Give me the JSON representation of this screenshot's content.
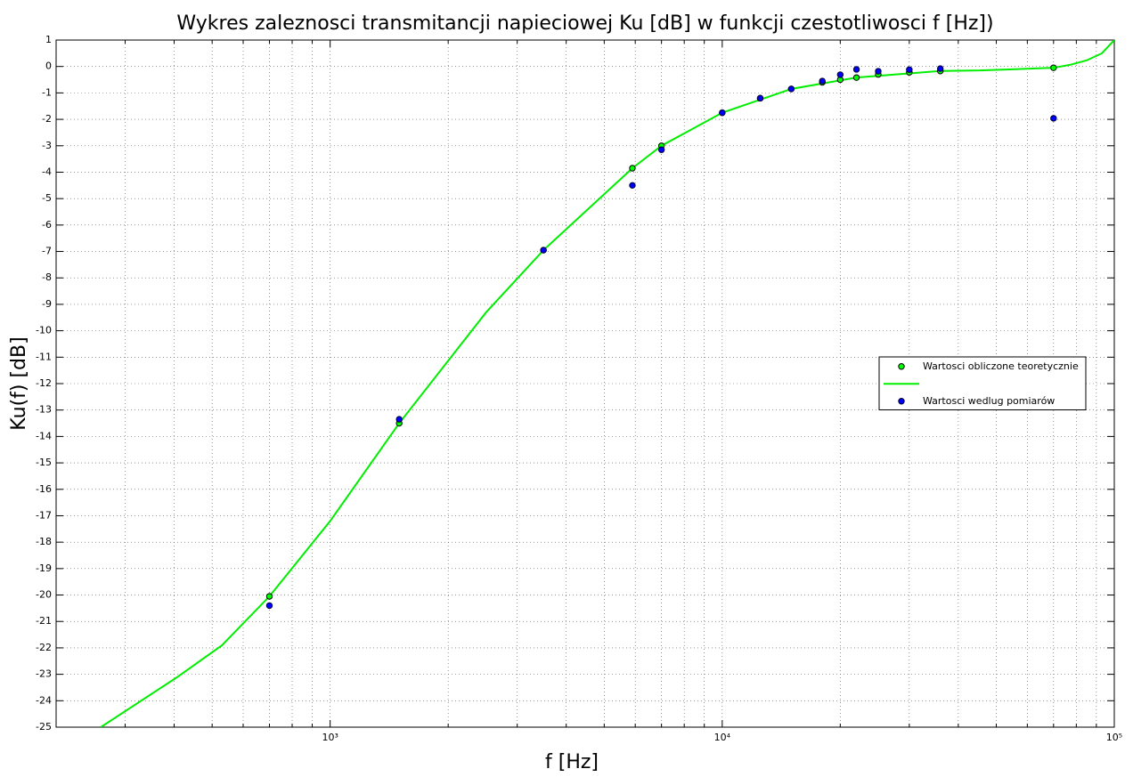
{
  "chart_data": {
    "type": "line",
    "title": "Wykres zaleznosci transmitancji napieciowej Ku [dB] w funkcji czestotliwosci f [Hz])",
    "xlabel": "f [Hz]",
    "ylabel": "Ku(f) [dB]",
    "xscale": "log",
    "grid": true,
    "legend": "east",
    "xlim": [
      200,
      100000
    ],
    "ylim": [
      -25,
      1
    ],
    "xticks": [
      {
        "value": 1000,
        "label": "10³"
      },
      {
        "value": 10000,
        "label": "10⁴"
      },
      {
        "value": 100000,
        "label": "10⁵"
      }
    ],
    "xminorticks": [
      200,
      300,
      400,
      500,
      600,
      700,
      800,
      900,
      2000,
      3000,
      4000,
      5000,
      6000,
      7000,
      8000,
      9000,
      20000,
      30000,
      40000,
      50000,
      60000,
      70000,
      80000,
      90000
    ],
    "yticks": [
      1,
      0,
      -1,
      -2,
      -3,
      -4,
      -5,
      -6,
      -7,
      -8,
      -9,
      -10,
      -11,
      -12,
      -13,
      -14,
      -15,
      -16,
      -17,
      -18,
      -19,
      -20,
      -21,
      -22,
      -23,
      -24,
      -25
    ],
    "series": [
      {
        "name": "Wartosci obliczone teoretycznie",
        "style": "marker",
        "color": "#00ff00",
        "edgecolor": "#000000",
        "x": [
          700,
          1500,
          3500,
          5900,
          7000,
          10000,
          12500,
          15000,
          18000,
          20000,
          22000,
          25000,
          30000,
          36000,
          70000
        ],
        "values": [
          -20.05,
          -13.5,
          -6.95,
          -3.85,
          -3.0,
          -1.75,
          -1.2,
          -0.85,
          -0.6,
          -0.5,
          -0.42,
          -0.3,
          -0.22,
          -0.17,
          -0.05
        ]
      },
      {
        "style": "line",
        "color": "#00ee00",
        "x": [
          260,
          408,
          530,
          700,
          1000,
          1500,
          2500,
          3500,
          5900,
          7000,
          10000,
          15000,
          22000,
          36000,
          45400,
          70000,
          77000,
          85000,
          93000,
          100000
        ],
        "values": [
          -25,
          -23.1,
          -21.9,
          -20.05,
          -17.2,
          -13.5,
          -9.3,
          -6.95,
          -3.85,
          -3.0,
          -1.75,
          -0.85,
          -0.42,
          -0.17,
          -0.15,
          -0.05,
          0.06,
          0.23,
          0.5,
          1.0
        ]
      },
      {
        "name": "Wartosci wedlug pomiarów",
        "style": "marker",
        "color": "#0000ff",
        "edgecolor": "#000033",
        "x": [
          700,
          1500,
          3500,
          5900,
          7000,
          10000,
          12500,
          15000,
          18000,
          20000,
          22000,
          25000,
          30000,
          36000,
          70000
        ],
        "values": [
          -20.4,
          -13.35,
          -6.95,
          -4.5,
          -3.15,
          -1.75,
          -1.2,
          -0.85,
          -0.55,
          -0.31,
          -0.11,
          -0.18,
          -0.12,
          -0.08,
          -1.96
        ]
      }
    ]
  }
}
